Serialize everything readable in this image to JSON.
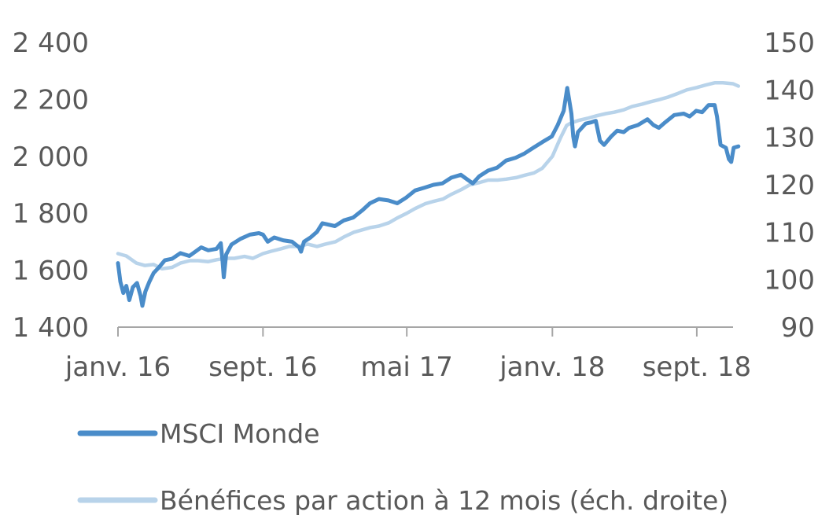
{
  "chart_data": {
    "type": "line",
    "x_ticks": [
      "janv. 16",
      "sept. 16",
      "mai 17",
      "janv. 18",
      "sept. 18"
    ],
    "x_tick_dates": [
      "2016-01",
      "2016-09",
      "2017-05",
      "2018-01",
      "2018-09"
    ],
    "x_range": [
      "2016-01",
      "2018-11"
    ],
    "y_left": {
      "range": [
        1400,
        2400
      ],
      "ticks": [
        1400,
        1600,
        1800,
        2000,
        2200,
        2400
      ],
      "tick_labels": [
        "1 400",
        "1 600",
        "1 800",
        "2 000",
        "2 200",
        "2 400"
      ]
    },
    "y_right": {
      "range": [
        90,
        150
      ],
      "ticks": [
        90,
        100,
        110,
        120,
        130,
        140,
        150
      ],
      "tick_labels": [
        "90",
        "100",
        "110",
        "120",
        "130",
        "140",
        "150"
      ]
    },
    "grid": false,
    "legend_position": "bottom-left",
    "series": [
      {
        "name": "MSCI Monde",
        "axis": "left",
        "color": "#4a8cc9",
        "points": [
          [
            "2016-01-01",
            1625
          ],
          [
            "2016-01-05",
            1560
          ],
          [
            "2016-01-10",
            1520
          ],
          [
            "2016-01-15",
            1545
          ],
          [
            "2016-01-20",
            1495
          ],
          [
            "2016-01-26",
            1540
          ],
          [
            "2016-02-02",
            1555
          ],
          [
            "2016-02-08",
            1510
          ],
          [
            "2016-02-11",
            1475
          ],
          [
            "2016-02-16",
            1525
          ],
          [
            "2016-02-23",
            1560
          ],
          [
            "2016-03-01",
            1590
          ],
          [
            "2016-03-10",
            1610
          ],
          [
            "2016-03-20",
            1635
          ],
          [
            "2016-04-01",
            1640
          ],
          [
            "2016-04-15",
            1660
          ],
          [
            "2016-04-30",
            1650
          ],
          [
            "2016-05-10",
            1665
          ],
          [
            "2016-05-20",
            1680
          ],
          [
            "2016-06-01",
            1670
          ],
          [
            "2016-06-15",
            1675
          ],
          [
            "2016-06-22",
            1695
          ],
          [
            "2016-06-25",
            1630
          ],
          [
            "2016-06-27",
            1575
          ],
          [
            "2016-07-01",
            1655
          ],
          [
            "2016-07-10",
            1690
          ],
          [
            "2016-07-25",
            1710
          ],
          [
            "2016-08-10",
            1725
          ],
          [
            "2016-08-25",
            1730
          ],
          [
            "2016-09-01",
            1725
          ],
          [
            "2016-09-09",
            1700
          ],
          [
            "2016-09-20",
            1715
          ],
          [
            "2016-10-05",
            1705
          ],
          [
            "2016-10-20",
            1700
          ],
          [
            "2016-11-01",
            1680
          ],
          [
            "2016-11-04",
            1665
          ],
          [
            "2016-11-09",
            1700
          ],
          [
            "2016-11-20",
            1715
          ],
          [
            "2016-12-01",
            1735
          ],
          [
            "2016-12-10",
            1765
          ],
          [
            "2016-12-31",
            1755
          ],
          [
            "2017-01-15",
            1775
          ],
          [
            "2017-01-31",
            1785
          ],
          [
            "2017-02-15",
            1810
          ],
          [
            "2017-02-28",
            1835
          ],
          [
            "2017-03-15",
            1850
          ],
          [
            "2017-03-31",
            1845
          ],
          [
            "2017-04-15",
            1835
          ],
          [
            "2017-04-30",
            1855
          ],
          [
            "2017-05-15",
            1880
          ],
          [
            "2017-05-31",
            1890
          ],
          [
            "2017-06-15",
            1900
          ],
          [
            "2017-06-30",
            1905
          ],
          [
            "2017-07-15",
            1925
          ],
          [
            "2017-07-31",
            1935
          ],
          [
            "2017-08-10",
            1920
          ],
          [
            "2017-08-20",
            1905
          ],
          [
            "2017-08-31",
            1930
          ],
          [
            "2017-09-15",
            1950
          ],
          [
            "2017-09-30",
            1960
          ],
          [
            "2017-10-15",
            1985
          ],
          [
            "2017-10-31",
            1995
          ],
          [
            "2017-11-15",
            2010
          ],
          [
            "2017-11-30",
            2030
          ],
          [
            "2017-12-15",
            2050
          ],
          [
            "2017-12-31",
            2070
          ],
          [
            "2018-01-10",
            2110
          ],
          [
            "2018-01-20",
            2160
          ],
          [
            "2018-01-26",
            2240
          ],
          [
            "2018-02-02",
            2150
          ],
          [
            "2018-02-05",
            2070
          ],
          [
            "2018-02-08",
            2035
          ],
          [
            "2018-02-13",
            2085
          ],
          [
            "2018-02-26",
            2115
          ],
          [
            "2018-03-08",
            2120
          ],
          [
            "2018-03-15",
            2125
          ],
          [
            "2018-03-22",
            2055
          ],
          [
            "2018-03-29",
            2040
          ],
          [
            "2018-04-10",
            2070
          ],
          [
            "2018-04-20",
            2090
          ],
          [
            "2018-05-01",
            2085
          ],
          [
            "2018-05-10",
            2100
          ],
          [
            "2018-05-25",
            2110
          ],
          [
            "2018-06-10",
            2130
          ],
          [
            "2018-06-20",
            2110
          ],
          [
            "2018-06-29",
            2100
          ],
          [
            "2018-07-10",
            2120
          ],
          [
            "2018-07-25",
            2145
          ],
          [
            "2018-08-10",
            2150
          ],
          [
            "2018-08-20",
            2140
          ],
          [
            "2018-08-31",
            2160
          ],
          [
            "2018-09-10",
            2155
          ],
          [
            "2018-09-21",
            2180
          ],
          [
            "2018-10-01",
            2180
          ],
          [
            "2018-10-05",
            2140
          ],
          [
            "2018-10-11",
            2040
          ],
          [
            "2018-10-20",
            2030
          ],
          [
            "2018-10-25",
            1990
          ],
          [
            "2018-10-29",
            1980
          ],
          [
            "2018-11-02",
            2030
          ],
          [
            "2018-11-10",
            2035
          ]
        ]
      },
      {
        "name": "Bénéfices par action à 12 mois (éch. droite)",
        "axis": "right",
        "color": "#b8d3ea",
        "points": [
          [
            "2016-01-01",
            105.5
          ],
          [
            "2016-01-15",
            105
          ],
          [
            "2016-02-01",
            103.5
          ],
          [
            "2016-02-15",
            103
          ],
          [
            "2016-03-01",
            103.2
          ],
          [
            "2016-03-15",
            102.3
          ],
          [
            "2016-04-01",
            102.6
          ],
          [
            "2016-04-15",
            103.5
          ],
          [
            "2016-05-01",
            104
          ],
          [
            "2016-05-15",
            104
          ],
          [
            "2016-06-01",
            103.8
          ],
          [
            "2016-06-15",
            104.2
          ],
          [
            "2016-07-01",
            104.5
          ],
          [
            "2016-07-15",
            104.5
          ],
          [
            "2016-08-01",
            104.9
          ],
          [
            "2016-08-15",
            104.5
          ],
          [
            "2016-09-01",
            105.5
          ],
          [
            "2016-09-15",
            106
          ],
          [
            "2016-10-01",
            106.5
          ],
          [
            "2016-10-15",
            107
          ],
          [
            "2016-11-01",
            107
          ],
          [
            "2016-11-15",
            107.5
          ],
          [
            "2016-12-01",
            107
          ],
          [
            "2016-12-15",
            107.5
          ],
          [
            "2017-01-01",
            108
          ],
          [
            "2017-01-15",
            109
          ],
          [
            "2017-02-01",
            110
          ],
          [
            "2017-02-15",
            110.5
          ],
          [
            "2017-03-01",
            111
          ],
          [
            "2017-03-15",
            111.3
          ],
          [
            "2017-04-01",
            112
          ],
          [
            "2017-04-15",
            113
          ],
          [
            "2017-05-01",
            114
          ],
          [
            "2017-05-15",
            115
          ],
          [
            "2017-06-01",
            116
          ],
          [
            "2017-06-15",
            116.5
          ],
          [
            "2017-07-01",
            117
          ],
          [
            "2017-07-15",
            118
          ],
          [
            "2017-08-01",
            119
          ],
          [
            "2017-08-15",
            120
          ],
          [
            "2017-09-01",
            120.5
          ],
          [
            "2017-09-15",
            121
          ],
          [
            "2017-10-01",
            121
          ],
          [
            "2017-10-15",
            121.2
          ],
          [
            "2017-11-01",
            121.5
          ],
          [
            "2017-11-15",
            122
          ],
          [
            "2017-12-01",
            122.5
          ],
          [
            "2017-12-15",
            123.5
          ],
          [
            "2018-01-01",
            126
          ],
          [
            "2018-01-15",
            130
          ],
          [
            "2018-01-25",
            132.5
          ],
          [
            "2018-02-01",
            133
          ],
          [
            "2018-02-15",
            133.6
          ],
          [
            "2018-03-01",
            134
          ],
          [
            "2018-03-15",
            134.5
          ],
          [
            "2018-04-01",
            135
          ],
          [
            "2018-04-15",
            135.3
          ],
          [
            "2018-05-01",
            135.8
          ],
          [
            "2018-05-15",
            136.5
          ],
          [
            "2018-06-01",
            137
          ],
          [
            "2018-06-15",
            137.5
          ],
          [
            "2018-07-01",
            138
          ],
          [
            "2018-07-15",
            138.5
          ],
          [
            "2018-08-01",
            139.3
          ],
          [
            "2018-08-15",
            140
          ],
          [
            "2018-09-01",
            140.5
          ],
          [
            "2018-09-15",
            141
          ],
          [
            "2018-10-01",
            141.5
          ],
          [
            "2018-10-15",
            141.5
          ],
          [
            "2018-11-01",
            141.3
          ],
          [
            "2018-11-10",
            140.8
          ]
        ]
      }
    ]
  }
}
